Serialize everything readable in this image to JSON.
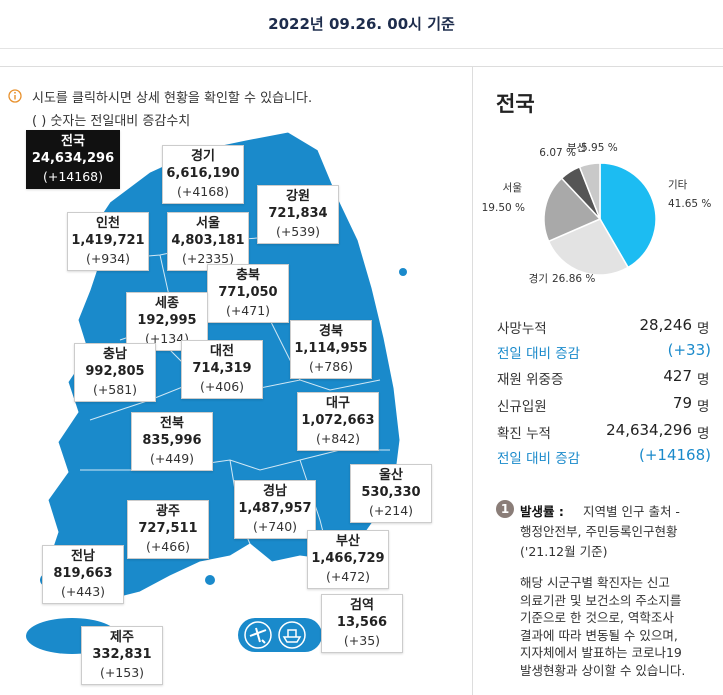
{
  "header": {
    "text": "2022년 09.26. 00시 기준"
  },
  "notice": [
    "시도를 클릭하시면 상세 현황을 확인할 수 있습니다.",
    "( ) 숫자는 전일대비 증감수치"
  ],
  "regions": [
    {
      "name": "전국",
      "total": "24,634,296",
      "change": "(+14168)"
    },
    {
      "name": "경기",
      "total": "6,616,190",
      "change": "(+4168)"
    },
    {
      "name": "강원",
      "total": "721,834",
      "change": "(+539)"
    },
    {
      "name": "인천",
      "total": "1,419,721",
      "change": "(+934)"
    },
    {
      "name": "서울",
      "total": "4,803,181",
      "change": "(+2335)"
    },
    {
      "name": "충북",
      "total": "771,050",
      "change": "(+471)"
    },
    {
      "name": "세종",
      "total": "192,995",
      "change": "(+134)"
    },
    {
      "name": "경북",
      "total": "1,114,955",
      "change": "(+786)"
    },
    {
      "name": "충남",
      "total": "992,805",
      "change": "(+581)"
    },
    {
      "name": "대전",
      "total": "714,319",
      "change": "(+406)"
    },
    {
      "name": "대구",
      "total": "1,072,663",
      "change": "(+842)"
    },
    {
      "name": "전북",
      "total": "835,996",
      "change": "(+449)"
    },
    {
      "name": "울산",
      "total": "530,330",
      "change": "(+214)"
    },
    {
      "name": "경남",
      "total": "1,487,957",
      "change": "(+740)"
    },
    {
      "name": "광주",
      "total": "727,511",
      "change": "(+466)"
    },
    {
      "name": "부산",
      "total": "1,466,729",
      "change": "(+472)"
    },
    {
      "name": "전남",
      "total": "819,663",
      "change": "(+443)"
    },
    {
      "name": "검역",
      "total": "13,566",
      "change": "(+35)"
    },
    {
      "name": "제주",
      "total": "332,831",
      "change": "(+153)"
    }
  ],
  "panel": {
    "title": "전국",
    "stats": [
      {
        "label": "사망누적",
        "value": "28,246",
        "unit": "명"
      },
      {
        "label": "전일 대비 증감",
        "value": "(+33)"
      },
      {
        "label": "재원 위중증",
        "value": "427",
        "unit": "명"
      },
      {
        "label": "신규입원",
        "value": "79",
        "unit": "명"
      },
      {
        "label": "확진 누적",
        "value": "24,634,296",
        "unit": "명"
      },
      {
        "label": "전일 대비 증감",
        "value": "(+14168)"
      }
    ],
    "footnote": {
      "number": "1",
      "heading": "발생률 :",
      "lines": [
        "지역별 인구 출처 -",
        "행정안전부, 주민등록인구현황",
        "('21.12월 기준)"
      ],
      "paragraph": [
        "해당 시군구별 확진자는 신고",
        "의료기관 및 보건소의 주소지를",
        "기준으로 한 것으로, 역학조사",
        "결과에 따라 변동될 수 있으며,",
        "지자체에서 발표하는 코로나19",
        "발생현황과 상이할 수 있습니다."
      ]
    }
  },
  "chart_data": {
    "type": "pie",
    "categories": [
      "기타",
      "경기",
      "서울",
      null,
      "부산"
    ],
    "values": [
      41.65,
      26.86,
      19.5,
      6.07,
      5.95
    ],
    "value_labels": [
      "41.65 %",
      "26.86 %",
      "19.50 %",
      "6.07 %",
      "5.95 %"
    ],
    "colors": [
      "#1cbcf2",
      "#e3e3e3",
      "#a9a9a9",
      "#555555",
      "#c9c9c9"
    ]
  }
}
